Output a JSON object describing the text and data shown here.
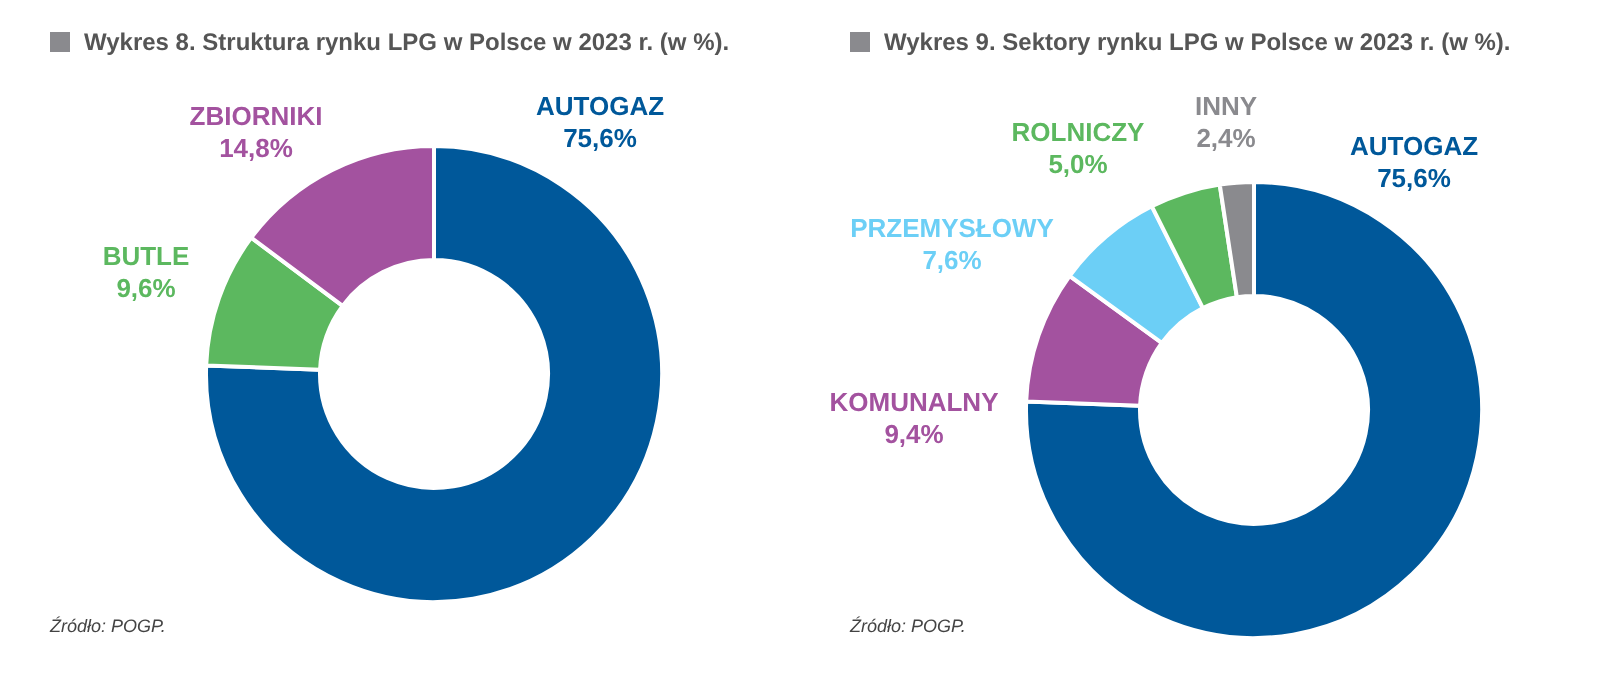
{
  "chart_data": [
    {
      "type": "donut",
      "title": "Wykres 8. Struktura rynku LPG w Polsce w 2023 r. (w %).",
      "categories": [
        "AUTOGAZ",
        "BUTLE",
        "ZBIORNIKI"
      ],
      "values": [
        75.6,
        9.6,
        14.8
      ],
      "value_labels": [
        "75,6%",
        "9,6%",
        "14,8%"
      ],
      "colors": [
        "#00589a",
        "#5cb85f",
        "#a3529f"
      ],
      "legend": false,
      "annotations": [
        "Źródło: POGP."
      ]
    },
    {
      "type": "donut",
      "title": "Wykres 9. Sektory rynku LPG w Polsce w 2023 r. (w %).",
      "categories": [
        "AUTOGAZ",
        "KOMUNALNY",
        "PRZEMYSŁOWY",
        "ROLNICZY",
        "INNY"
      ],
      "values": [
        75.6,
        9.4,
        7.6,
        5.0,
        2.4
      ],
      "value_labels": [
        "75,6%",
        "9,4%",
        "7,6%",
        "5,0%",
        "2,4%"
      ],
      "colors": [
        "#00589a",
        "#a3529f",
        "#6ccff6",
        "#5cb85f",
        "#8a8a8e"
      ],
      "legend": false,
      "annotations": [
        "Źródło: POGP."
      ]
    }
  ]
}
